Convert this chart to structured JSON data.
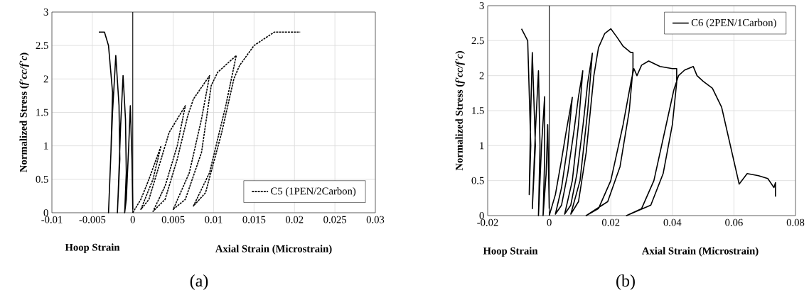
{
  "chart_data": [
    {
      "type": "line",
      "xlabel": "Axial Strain (Microstrain)",
      "ylabel": "Normalized Stress (*f'cc/f'c*)",
      "annotations": [
        "Hoop Strain",
        "(a)"
      ],
      "xlim": [
        -0.01,
        0.03
      ],
      "ylim": [
        0,
        3
      ],
      "xticks": [
        -0.01,
        -0.005,
        0,
        0.005,
        0.01,
        0.015,
        0.02,
        0.025,
        0.03
      ],
      "yticks": [
        0,
        0.5,
        1,
        1.5,
        2,
        2.5,
        3
      ],
      "grid": true,
      "legend": "bottom right",
      "ref_lines": [
        {
          "axis": "x",
          "value": 0,
          "color": "#000000"
        }
      ],
      "series": [
        {
          "color": "#000000",
          "line_style": "solid",
          "x": [
            0,
            -0.0001,
            -0.0003,
            -0.0005,
            -0.0008,
            -0.001,
            -0.0008,
            -0.0009,
            -0.0012,
            -0.0015,
            -0.0018,
            -0.0019,
            -0.0016,
            -0.0017,
            -0.0021,
            -0.0025,
            -0.0029,
            -0.003,
            -0.0027,
            -0.0025,
            -0.003,
            -0.0035,
            -0.0042
          ],
          "values": [
            0.05,
            0.8,
            1.6,
            1.0,
            0.2,
            0,
            0.6,
            1.4,
            2.05,
            1.3,
            0.3,
            0,
            0.8,
            1.6,
            2.35,
            1.5,
            0.3,
            0,
            0.9,
            1.8,
            2.5,
            2.7,
            2.7
          ]
        },
        {
          "name": "C5 (1PEN/2Carbon)",
          "color": "#000000",
          "line_style": "dashed",
          "x": [
            0,
            0.001,
            0.002,
            0.0035,
            0.0025,
            0.001,
            0.002,
            0.003,
            0.0045,
            0.0065,
            0.0055,
            0.004,
            0.0025,
            0.004,
            0.0055,
            0.0068,
            0.0075,
            0.0095,
            0.0085,
            0.007,
            0.005,
            0.0065,
            0.0085,
            0.0097,
            0.0105,
            0.0128,
            0.0115,
            0.0095,
            0.0075,
            0.009,
            0.011,
            0.0125,
            0.0132,
            0.015,
            0.0175,
            0.0207
          ],
          "values": [
            0,
            0.2,
            0.5,
            1.0,
            0.5,
            0.05,
            0.2,
            0.6,
            1.2,
            1.6,
            1.0,
            0.4,
            0.02,
            0.2,
            0.8,
            1.45,
            1.7,
            2.05,
            1.4,
            0.6,
            0.05,
            0.2,
            0.9,
            1.9,
            2.1,
            2.35,
            1.6,
            0.6,
            0.1,
            0.3,
            1.2,
            2.0,
            2.2,
            2.5,
            2.7,
            2.7
          ]
        }
      ]
    },
    {
      "type": "line",
      "xlabel": "Axial Strain (Microstrain)",
      "ylabel": "Normalized Stress (*f'cc/f'c*)",
      "annotations": [
        "Hoop Strain",
        "(b)"
      ],
      "xlim": [
        -0.02,
        0.08
      ],
      "ylim": [
        0,
        3
      ],
      "xticks": [
        -0.02,
        0,
        0.02,
        0.04,
        0.06,
        0.08
      ],
      "yticks": [
        0,
        0.5,
        1,
        1.5,
        2,
        2.5,
        3
      ],
      "grid": true,
      "legend": "top right",
      "ref_lines": [
        {
          "axis": "x",
          "value": 0,
          "color": "#000000"
        }
      ],
      "series": [
        {
          "color": "#000000",
          "line_style": "solid",
          "x": [
            0,
            -0.0005,
            -0.001,
            -0.002,
            -0.0015,
            -0.0015,
            -0.0025,
            -0.0035,
            -0.003,
            -0.0035,
            -0.0045,
            -0.0055,
            -0.0045,
            -0.0055,
            -0.006,
            -0.0065,
            -0.006,
            -0.007,
            -0.009
          ],
          "values": [
            0.1,
            1.3,
            0.6,
            0,
            0.8,
            1.7,
            1.0,
            0,
            1.0,
            2.07,
            1.2,
            0.1,
            1.0,
            2.33,
            1.5,
            0.3,
            1.0,
            2.5,
            2.67
          ]
        },
        {
          "name": "C6 (2PEN/1Carbon)",
          "color": "#000000",
          "line_style": "solid",
          "x": [
            0,
            0.002,
            0.004,
            0.0055,
            0.0075,
            0.006,
            0.004,
            0.002,
            0.004,
            0.006,
            0.008,
            0.0095,
            0.0109,
            0.0095,
            0.0075,
            0.005,
            0.007,
            0.009,
            0.011,
            0.0125,
            0.014,
            0.0125,
            0.01,
            0.007,
            0.0095,
            0.012,
            0.0145,
            0.016,
            0.018,
            0.02,
            0.022,
            0.024,
            0.0265,
            0.0272,
            0.0272,
            0.026,
            0.023,
            0.019,
            0.012,
            0.016,
            0.02,
            0.024,
            0.0265,
            0.0275,
            0.0285,
            0.03,
            0.0323,
            0.036,
            0.04,
            0.0414,
            0.0414,
            0.04,
            0.037,
            0.033,
            0.0251,
            0.03,
            0.034,
            0.038,
            0.0405,
            0.042,
            0.044,
            0.0468,
            0.048,
            0.05,
            0.053,
            0.056,
            0.0617,
            0.0643,
            0.068,
            0.071,
            0.073,
            0.0735,
            0.0735
          ],
          "values": [
            0,
            0.3,
            0.8,
            1.2,
            1.69,
            1.0,
            0.4,
            0.02,
            0.15,
            0.6,
            1.2,
            1.7,
            2.07,
            1.3,
            0.5,
            0.02,
            0.15,
            0.6,
            1.3,
            1.9,
            2.32,
            1.5,
            0.5,
            0.02,
            0.2,
            0.9,
            2.0,
            2.4,
            2.6,
            2.67,
            2.55,
            2.42,
            2.33,
            2.33,
            2.1,
            1.5,
            0.7,
            0.2,
            0,
            0.1,
            0.5,
            1.3,
            1.9,
            2.1,
            2.0,
            2.15,
            2.21,
            2.13,
            2.1,
            2.1,
            1.9,
            1.3,
            0.6,
            0.15,
            0,
            0.1,
            0.5,
            1.3,
            1.8,
            2.0,
            2.08,
            2.13,
            2.0,
            1.92,
            1.82,
            1.55,
            0.45,
            0.6,
            0.57,
            0.53,
            0.4,
            0.47,
            0.27
          ]
        }
      ]
    }
  ]
}
